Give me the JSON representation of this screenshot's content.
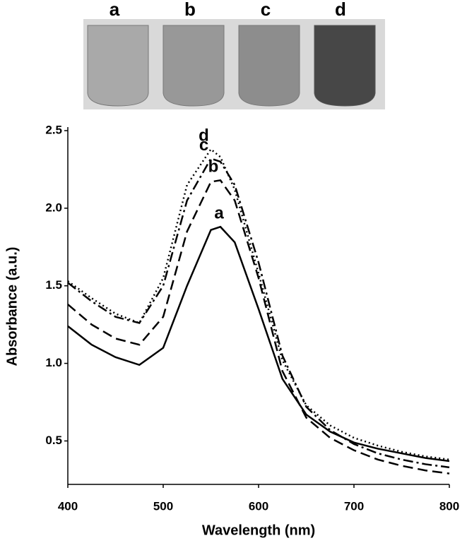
{
  "photo": {
    "labels": [
      "a",
      "b",
      "c",
      "d"
    ]
  },
  "chart_data": {
    "type": "line",
    "x_label": "Wavelength (nm)",
    "y_label": "Absorbance (a.u.)",
    "x": [
      400,
      425,
      450,
      475,
      500,
      525,
      550,
      560,
      575,
      600,
      625,
      650,
      675,
      700,
      725,
      750,
      775,
      800
    ],
    "series": [
      {
        "name": "a",
        "color": "#000000",
        "dash": "solid",
        "values": [
          1.24,
          1.12,
          1.04,
          0.99,
          1.1,
          1.5,
          1.86,
          1.88,
          1.78,
          1.35,
          0.9,
          0.67,
          0.56,
          0.49,
          0.45,
          0.42,
          0.39,
          0.37
        ]
      },
      {
        "name": "b",
        "color": "#000000",
        "dash": "dashed",
        "values": [
          1.38,
          1.25,
          1.16,
          1.12,
          1.3,
          1.85,
          2.17,
          2.18,
          2.05,
          1.55,
          0.95,
          0.65,
          0.52,
          0.44,
          0.38,
          0.34,
          0.31,
          0.29
        ]
      },
      {
        "name": "c",
        "color": "#000000",
        "dash": "dashdot",
        "values": [
          1.52,
          1.4,
          1.3,
          1.26,
          1.5,
          2.05,
          2.32,
          2.3,
          2.15,
          1.65,
          1.05,
          0.72,
          0.57,
          0.48,
          0.42,
          0.38,
          0.35,
          0.33
        ]
      },
      {
        "name": "d",
        "color": "#000000",
        "dash": "dotted",
        "values": [
          1.53,
          1.42,
          1.32,
          1.26,
          1.55,
          2.15,
          2.38,
          2.33,
          2.12,
          1.58,
          1.02,
          0.73,
          0.6,
          0.52,
          0.47,
          0.43,
          0.4,
          0.38
        ]
      }
    ],
    "xlim": [
      400,
      800
    ],
    "ylim": [
      0.22,
      2.5
    ],
    "xticks": [
      400,
      500,
      600,
      700,
      800
    ],
    "yticks": [
      0.5,
      {
        "value": 1,
        "label": "1.0"
      },
      1.5,
      {
        "value": 2,
        "label": "2.0"
      },
      2.5
    ],
    "grid": false
  }
}
